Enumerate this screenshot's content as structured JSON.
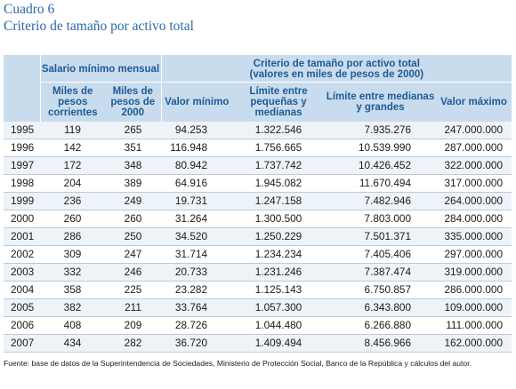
{
  "caption": {
    "number": "Cuadro 6",
    "title": "Criterio de tamaño por activo total"
  },
  "header": {
    "group1": "Salario mínimo mensual",
    "group2_line1": "Criterio de tamaño por activo total",
    "group2_line2": "(valores en miles de pesos de 2000)",
    "columns": [
      "Miles de pesos corrientes",
      "Miles de pesos de 2000",
      "Valor mínimo",
      "Límite entre pequeñas y medianas",
      "Límite entre medianas y grandes",
      "Valor máximo"
    ]
  },
  "rows": [
    [
      "1995",
      "119",
      "265",
      "94.253",
      "1.322.546",
      "7.935.276",
      "247.000.000"
    ],
    [
      "1996",
      "142",
      "351",
      "116.948",
      "1.756.665",
      "10.539.990",
      "287.000.000"
    ],
    [
      "1997",
      "172",
      "348",
      "80.942",
      "1.737.742",
      "10.426.452",
      "322.000.000"
    ],
    [
      "1998",
      "204",
      "389",
      "64.916",
      "1.945.082",
      "11.670.494",
      "317.000.000"
    ],
    [
      "1999",
      "236",
      "249",
      "19.731",
      "1.247.158",
      "7.482.946",
      "264.000.000"
    ],
    [
      "2000",
      "260",
      "260",
      "31.264",
      "1.300.500",
      "7.803.000",
      "284.000.000"
    ],
    [
      "2001",
      "286",
      "250",
      "34.520",
      "1.250.229",
      "7.501.371",
      "335.000.000"
    ],
    [
      "2002",
      "309",
      "247",
      "31.714",
      "1.234.234",
      "7.405.406",
      "297.000.000"
    ],
    [
      "2003",
      "332",
      "246",
      "20.733",
      "1.231.246",
      "7.387.474",
      "319.000.000"
    ],
    [
      "2004",
      "358",
      "225",
      "23.282",
      "1.125.143",
      "6.750.857",
      "286.000.000"
    ],
    [
      "2005",
      "382",
      "211",
      "33.764",
      "1.057.300",
      "6.343.800",
      "109.000.000"
    ],
    [
      "2006",
      "408",
      "209",
      "28.726",
      "1.044.480",
      "6.266.880",
      "111.000.000"
    ],
    [
      "2007",
      "434",
      "282",
      "36.720",
      "1.409.494",
      "8.456.966",
      "162.000.000"
    ]
  ],
  "footnote": "Fuente: base de datos de la Superintendencia de Sociedades, Ministerio de Protección Social, Banco de la República y cálculos del autor.",
  "colors": {
    "caption": "#2a6aa8",
    "header_bg": "#c9dcee",
    "header_text": "#1e5b93",
    "row_stripe": "#eef3f8",
    "row_rule": "#b8cbde"
  }
}
